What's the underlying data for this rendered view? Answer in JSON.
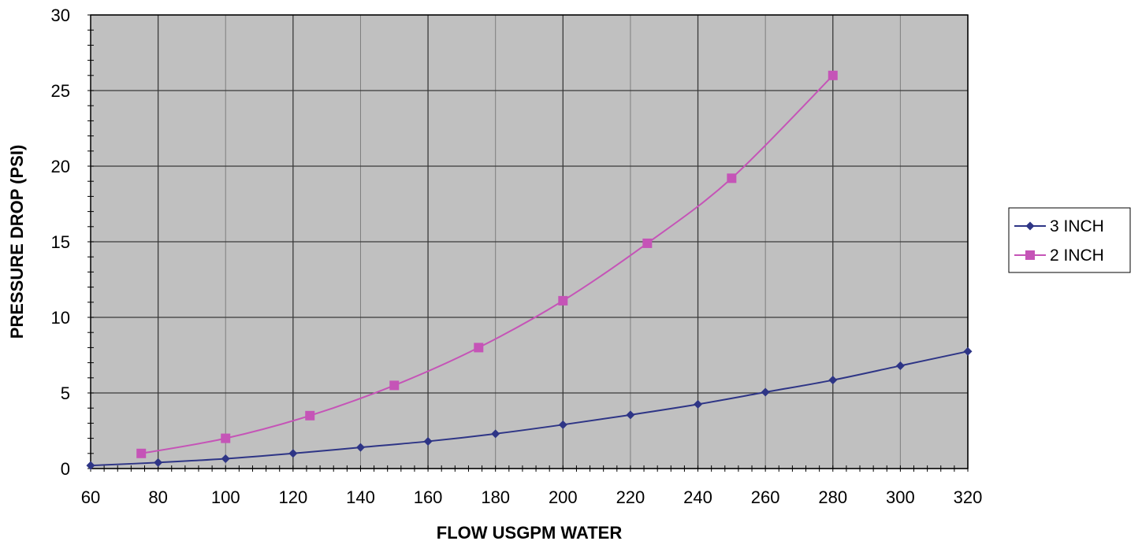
{
  "chart_data": {
    "type": "line",
    "title": "",
    "xlabel": "FLOW USGPM WATER",
    "ylabel": "PRESSURE DROP (PSI)",
    "xlim": [
      60,
      320
    ],
    "ylim": [
      0,
      30
    ],
    "x_ticks": [
      60,
      80,
      100,
      120,
      140,
      160,
      180,
      200,
      220,
      240,
      260,
      280,
      300,
      320
    ],
    "y_ticks": [
      0,
      5,
      10,
      15,
      20,
      25,
      30
    ],
    "grid": true,
    "legend_position": "right",
    "series": [
      {
        "name": "3 INCH",
        "color": "#2e3586",
        "marker": "diamond",
        "points": [
          [
            60,
            0.2
          ],
          [
            80,
            0.4
          ],
          [
            100,
            0.65
          ],
          [
            120,
            1.0
          ],
          [
            140,
            1.4
          ],
          [
            160,
            1.8
          ],
          [
            180,
            2.3
          ],
          [
            200,
            2.9
          ],
          [
            220,
            3.55
          ],
          [
            240,
            4.25
          ],
          [
            260,
            5.05
          ],
          [
            280,
            5.85
          ],
          [
            300,
            6.8
          ],
          [
            320,
            7.75
          ]
        ]
      },
      {
        "name": "2 INCH",
        "color": "#c554b7",
        "marker": "square",
        "points": [
          [
            75,
            1.0
          ],
          [
            100,
            2.0
          ],
          [
            125,
            3.5
          ],
          [
            150,
            5.5
          ],
          [
            175,
            8.0
          ],
          [
            200,
            11.1
          ],
          [
            225,
            14.9
          ],
          [
            250,
            19.2
          ],
          [
            280,
            26.0
          ]
        ]
      }
    ]
  }
}
